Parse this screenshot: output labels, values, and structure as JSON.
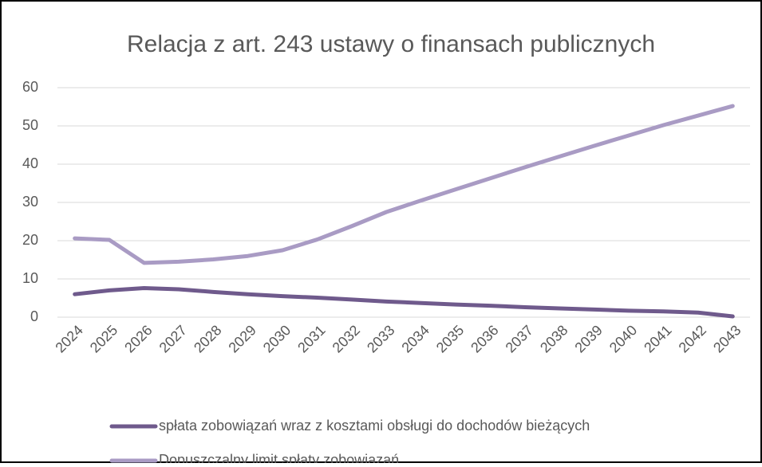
{
  "chart_data": {
    "type": "line",
    "title": "Relacja z art. 243 ustawy o finansach publicznych",
    "categories": [
      "2024",
      "2025",
      "2026",
      "2027",
      "2028",
      "2029",
      "2030",
      "2031",
      "2032",
      "2033",
      "2034",
      "2035",
      "2036",
      "2037",
      "2038",
      "2039",
      "2040",
      "2041",
      "2042",
      "2043"
    ],
    "series": [
      {
        "name": "spłata zobowiązań wraz z kosztami obsługi do dochodów bieżących",
        "color": "#6f5a8c",
        "values": [
          6,
          7,
          7.6,
          7.3,
          6.6,
          6,
          5.5,
          5.1,
          4.6,
          4.1,
          3.7,
          3.3,
          3,
          2.6,
          2.3,
          2,
          1.7,
          1.5,
          1.2,
          0.2
        ]
      },
      {
        "name": "Dopuszczalny limit spłaty zobowiązań",
        "color": "#a99bc4",
        "values": [
          20.6,
          20.2,
          14.2,
          14.5,
          15.1,
          16,
          17.5,
          20.3,
          23.8,
          27.5,
          30.5,
          33.4,
          36.3,
          39.2,
          42,
          44.8,
          47.5,
          50.2,
          52.7,
          55.2
        ]
      }
    ],
    "ylim": [
      0,
      60
    ],
    "yticks": [
      0,
      10,
      20,
      30,
      40,
      50,
      60
    ],
    "grid": true,
    "legend": "bottom"
  }
}
